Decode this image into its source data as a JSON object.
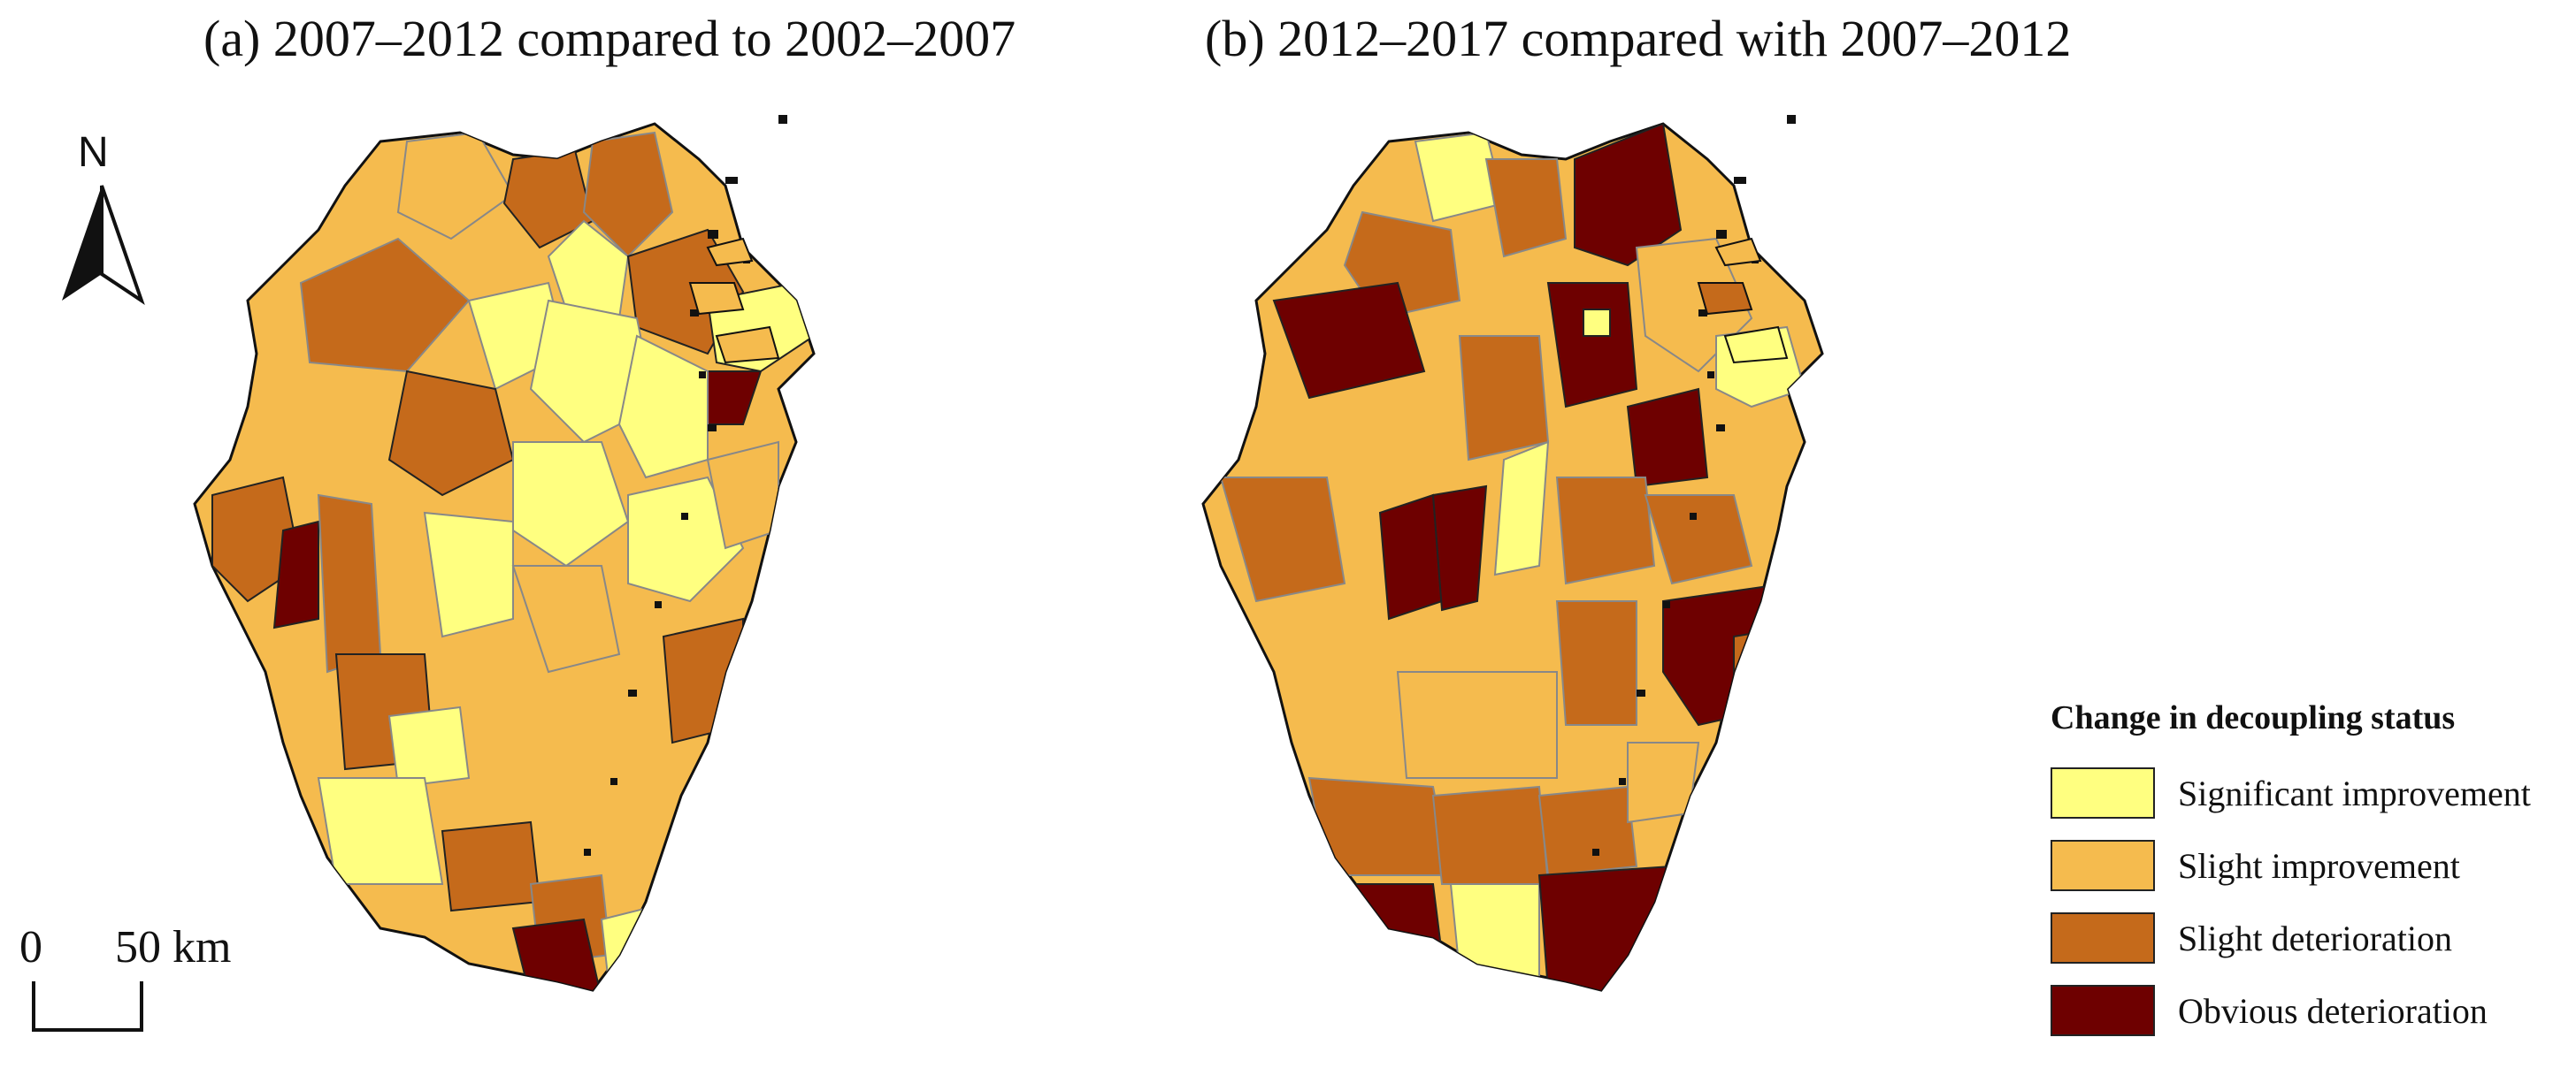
{
  "panels": {
    "a": {
      "title": "(a) 2007–2012 compared to 2002–2007"
    },
    "b": {
      "title": "(b) 2012–2017 compared with 2007–2012"
    }
  },
  "north_arrow": {
    "label": "N"
  },
  "scale_bar": {
    "zero": "0",
    "label": "50 km"
  },
  "legend": {
    "title": "Change in decoupling status",
    "items": [
      {
        "label": "Significant improvement",
        "color": "#ffff80"
      },
      {
        "label": "Slight improvement",
        "color": "#f5bb4e"
      },
      {
        "label": "Slight deterioration",
        "color": "#c56a1b"
      },
      {
        "label": "Obvious deterioration",
        "color": "#6e0000"
      }
    ]
  }
}
